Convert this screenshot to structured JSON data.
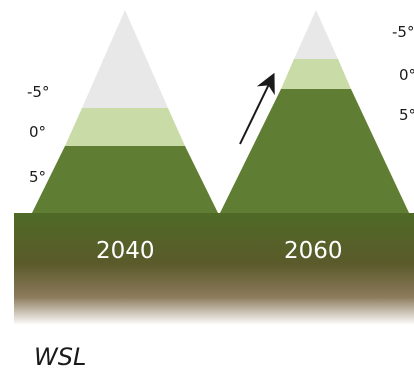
{
  "panels": [
    {
      "year": "2040",
      "labels": [
        "-5°",
        "0°",
        "5°"
      ]
    },
    {
      "year": "2060",
      "labels": [
        "-5°",
        "0°",
        "5°"
      ]
    }
  ],
  "credit": "WSL",
  "colors": {
    "snow": "#e8e8e8",
    "treeline": "#c9dca8",
    "forest": "#5f7e33",
    "ground_top": "#4f6a26",
    "ground_bottom": "#ffffff",
    "year_text": "#ffffff"
  },
  "icons": {
    "shift": "arrow-up-right-icon"
  }
}
